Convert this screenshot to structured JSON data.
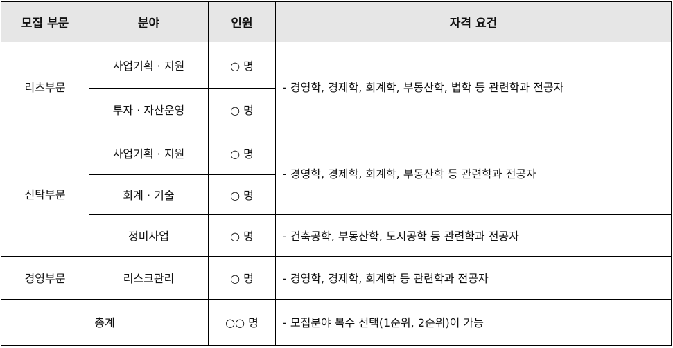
{
  "header": {
    "division": "모집 부문",
    "field": "분야",
    "headcount": "인원",
    "qualification": "자격 요건"
  },
  "rows": [
    {
      "division": "리츠부문",
      "fields": [
        {
          "name": "사업기획 · 지원",
          "count": "○ 명"
        },
        {
          "name": "투자 · 자산운영",
          "count": "○ 명"
        }
      ],
      "qualification": "- 경영학, 경제학, 회계학, 부동산학, 법학 등 관련학과 전공자"
    },
    {
      "division": "신탁부문",
      "fields": [
        {
          "name": "사업기획 · 지원",
          "count": "○ 명"
        },
        {
          "name": "회계 · 기술",
          "count": "○ 명"
        },
        {
          "name": "정비사업",
          "count": "○ 명"
        }
      ],
      "qualification": "- 경영학, 경제학, 회계학, 부동산학 등 관련학과 전공자",
      "qualification2": "- 건축공학, 부동산학, 도시공학 등 관련학과 전공자"
    },
    {
      "division": "경영부문",
      "fields": [
        {
          "name": "리스크관리",
          "count": "○ 명"
        }
      ],
      "qualification": "- 경영학, 경제학, 회계학 등 관련학과 전공자"
    }
  ],
  "total": {
    "label": "총계",
    "count": "○○ 명",
    "qualification": "- 모집분야 복수 선택(1순위, 2순위)이 가능"
  }
}
